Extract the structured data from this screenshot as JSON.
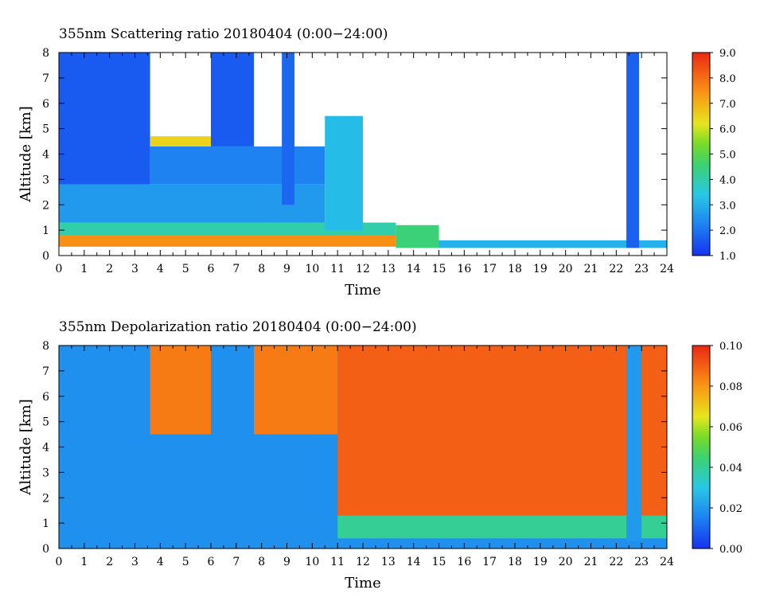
{
  "chart_data": [
    {
      "type": "heatmap",
      "title": "355nm Scattering ratio  20180404 (0:00−24:00)",
      "xlabel": "Time",
      "ylabel": "Altitude [km]",
      "xlim": [
        0,
        24
      ],
      "ylim": [
        0,
        8
      ],
      "x_ticks": [
        "0",
        "1",
        "2",
        "3",
        "4",
        "5",
        "6",
        "7",
        "8",
        "9",
        "10",
        "11",
        "12",
        "13",
        "14",
        "15",
        "16",
        "17",
        "18",
        "19",
        "20",
        "21",
        "22",
        "23",
        "24"
      ],
      "y_ticks": [
        "0",
        "1",
        "2",
        "3",
        "4",
        "5",
        "6",
        "7",
        "8"
      ],
      "colorbar": {
        "min": 1.0,
        "max": 9.0,
        "ticks": [
          "1.0",
          "2.0",
          "3.0",
          "4.0",
          "5.0",
          "6.0",
          "7.0",
          "8.0",
          "9.0"
        ]
      },
      "regions": [
        {
          "x": [
            0,
            13.3
          ],
          "y": [
            0.35,
            0.8
          ],
          "value": 7.5
        },
        {
          "x": [
            0,
            13.3
          ],
          "y": [
            0.8,
            1.3
          ],
          "value": 4.0
        },
        {
          "x": [
            0,
            10.5
          ],
          "y": [
            1.3,
            2.8
          ],
          "value": 2.6
        },
        {
          "x": [
            0,
            3.6
          ],
          "y": [
            2.8,
            8.0
          ],
          "value": 1.6
        },
        {
          "x": [
            3.6,
            10.5
          ],
          "y": [
            2.8,
            4.3
          ],
          "value": 2.2
        },
        {
          "x": [
            3.6,
            6.0
          ],
          "y": [
            4.3,
            4.7
          ],
          "value": 6.5
        },
        {
          "x": [
            6.0,
            7.7
          ],
          "y": [
            4.3,
            8.0
          ],
          "value": 1.6
        },
        {
          "x": [
            8.8,
            9.3
          ],
          "y": [
            2.0,
            8.0
          ],
          "value": 1.8
        },
        {
          "x": [
            10.5,
            12.0
          ],
          "y": [
            1.0,
            5.5
          ],
          "value": 3.2
        },
        {
          "x": [
            13.3,
            15.0
          ],
          "y": [
            0.3,
            1.2
          ],
          "value": 4.5
        },
        {
          "x": [
            15.0,
            24.0
          ],
          "y": [
            0.3,
            0.6
          ],
          "value": 3.0
        },
        {
          "x": [
            22.4,
            22.9
          ],
          "y": [
            0.3,
            8.0
          ],
          "value": 1.7
        }
      ]
    },
    {
      "type": "heatmap",
      "title": "355nm Depolarization ratio  20180404 (0:00−24:00)",
      "xlabel": "Time",
      "ylabel": "Altitude [km]",
      "xlim": [
        0,
        24
      ],
      "ylim": [
        0,
        8
      ],
      "x_ticks": [
        "0",
        "1",
        "2",
        "3",
        "4",
        "5",
        "6",
        "7",
        "8",
        "9",
        "10",
        "11",
        "12",
        "13",
        "14",
        "15",
        "16",
        "17",
        "18",
        "19",
        "20",
        "21",
        "22",
        "23",
        "24"
      ],
      "y_ticks": [
        "0",
        "1",
        "2",
        "3",
        "4",
        "5",
        "6",
        "7",
        "8"
      ],
      "colorbar": {
        "min": 0.0,
        "max": 0.1,
        "ticks": [
          "0.00",
          "0.02",
          "0.04",
          "0.06",
          "0.08",
          "0.10"
        ]
      },
      "regions": [
        {
          "x": [
            0,
            24
          ],
          "y": [
            0,
            8
          ],
          "value": 0.018
        },
        {
          "x": [
            3.6,
            6.0
          ],
          "y": [
            4.5,
            8.0
          ],
          "value": 0.085
        },
        {
          "x": [
            7.7,
            11.0
          ],
          "y": [
            4.5,
            8.0
          ],
          "value": 0.085
        },
        {
          "x": [
            11.0,
            24.0
          ],
          "y": [
            1.3,
            8.0
          ],
          "value": 0.09
        },
        {
          "x": [
            11.0,
            24.0
          ],
          "y": [
            0.4,
            1.3
          ],
          "value": 0.04
        },
        {
          "x": [
            22.4,
            23.0
          ],
          "y": [
            0.3,
            8.0
          ],
          "value": 0.02
        }
      ]
    }
  ]
}
